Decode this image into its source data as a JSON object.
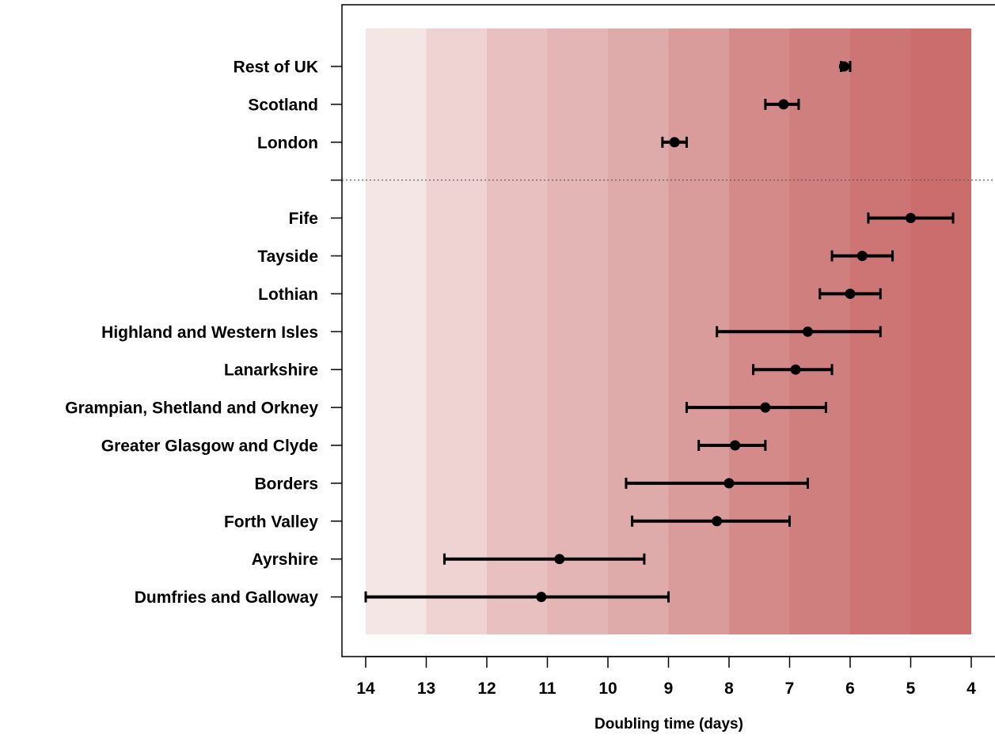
{
  "chart_data": {
    "type": "forest",
    "xlabel": "Doubling time (days)",
    "x_axis": {
      "min": 14,
      "max": 4,
      "reversed": true,
      "ticks": [
        14,
        13,
        12,
        11,
        10,
        9,
        8,
        7,
        6,
        5,
        4
      ]
    },
    "background_bands": {
      "from": 14,
      "to": 4,
      "step": 1,
      "colors": [
        "#f5e6e6",
        "#efd3d3",
        "#e8c0c0",
        "#e4b5b5",
        "#deaaaa",
        "#da9b9b",
        "#d58a8a",
        "#d07f7f",
        "#cd7474",
        "#cb6d6d"
      ]
    },
    "groups": [
      {
        "name": "uk",
        "rows": [
          {
            "label": "Rest of UK",
            "estimate": 6.1,
            "lower": 6.0,
            "upper": 6.15
          },
          {
            "label": "Scotland",
            "estimate": 7.1,
            "lower": 6.85,
            "upper": 7.4
          },
          {
            "label": "London",
            "estimate": 8.9,
            "lower": 8.7,
            "upper": 9.1
          }
        ]
      },
      {
        "name": "scotland-health-boards",
        "rows": [
          {
            "label": "Fife",
            "estimate": 5.0,
            "lower": 4.3,
            "upper": 5.7
          },
          {
            "label": "Tayside",
            "estimate": 5.8,
            "lower": 5.3,
            "upper": 6.3
          },
          {
            "label": "Lothian",
            "estimate": 6.0,
            "lower": 5.5,
            "upper": 6.5
          },
          {
            "label": "Highland and Western Isles",
            "estimate": 6.7,
            "lower": 5.5,
            "upper": 8.2
          },
          {
            "label": "Lanarkshire",
            "estimate": 6.9,
            "lower": 6.3,
            "upper": 7.6
          },
          {
            "label": "Grampian, Shetland and Orkney",
            "estimate": 7.4,
            "lower": 6.4,
            "upper": 8.7
          },
          {
            "label": "Greater Glasgow and Clyde",
            "estimate": 7.9,
            "lower": 7.4,
            "upper": 8.5
          },
          {
            "label": "Borders",
            "estimate": 8.0,
            "lower": 6.7,
            "upper": 9.7
          },
          {
            "label": "Forth Valley",
            "estimate": 8.2,
            "lower": 7.0,
            "upper": 9.6
          },
          {
            "label": "Ayrshire",
            "estimate": 10.8,
            "lower": 9.4,
            "upper": 12.7
          },
          {
            "label": "Dumfries and Galloway",
            "estimate": 11.1,
            "lower": 9.0,
            "upper": 14.0
          }
        ]
      }
    ],
    "separator": "dotted"
  }
}
